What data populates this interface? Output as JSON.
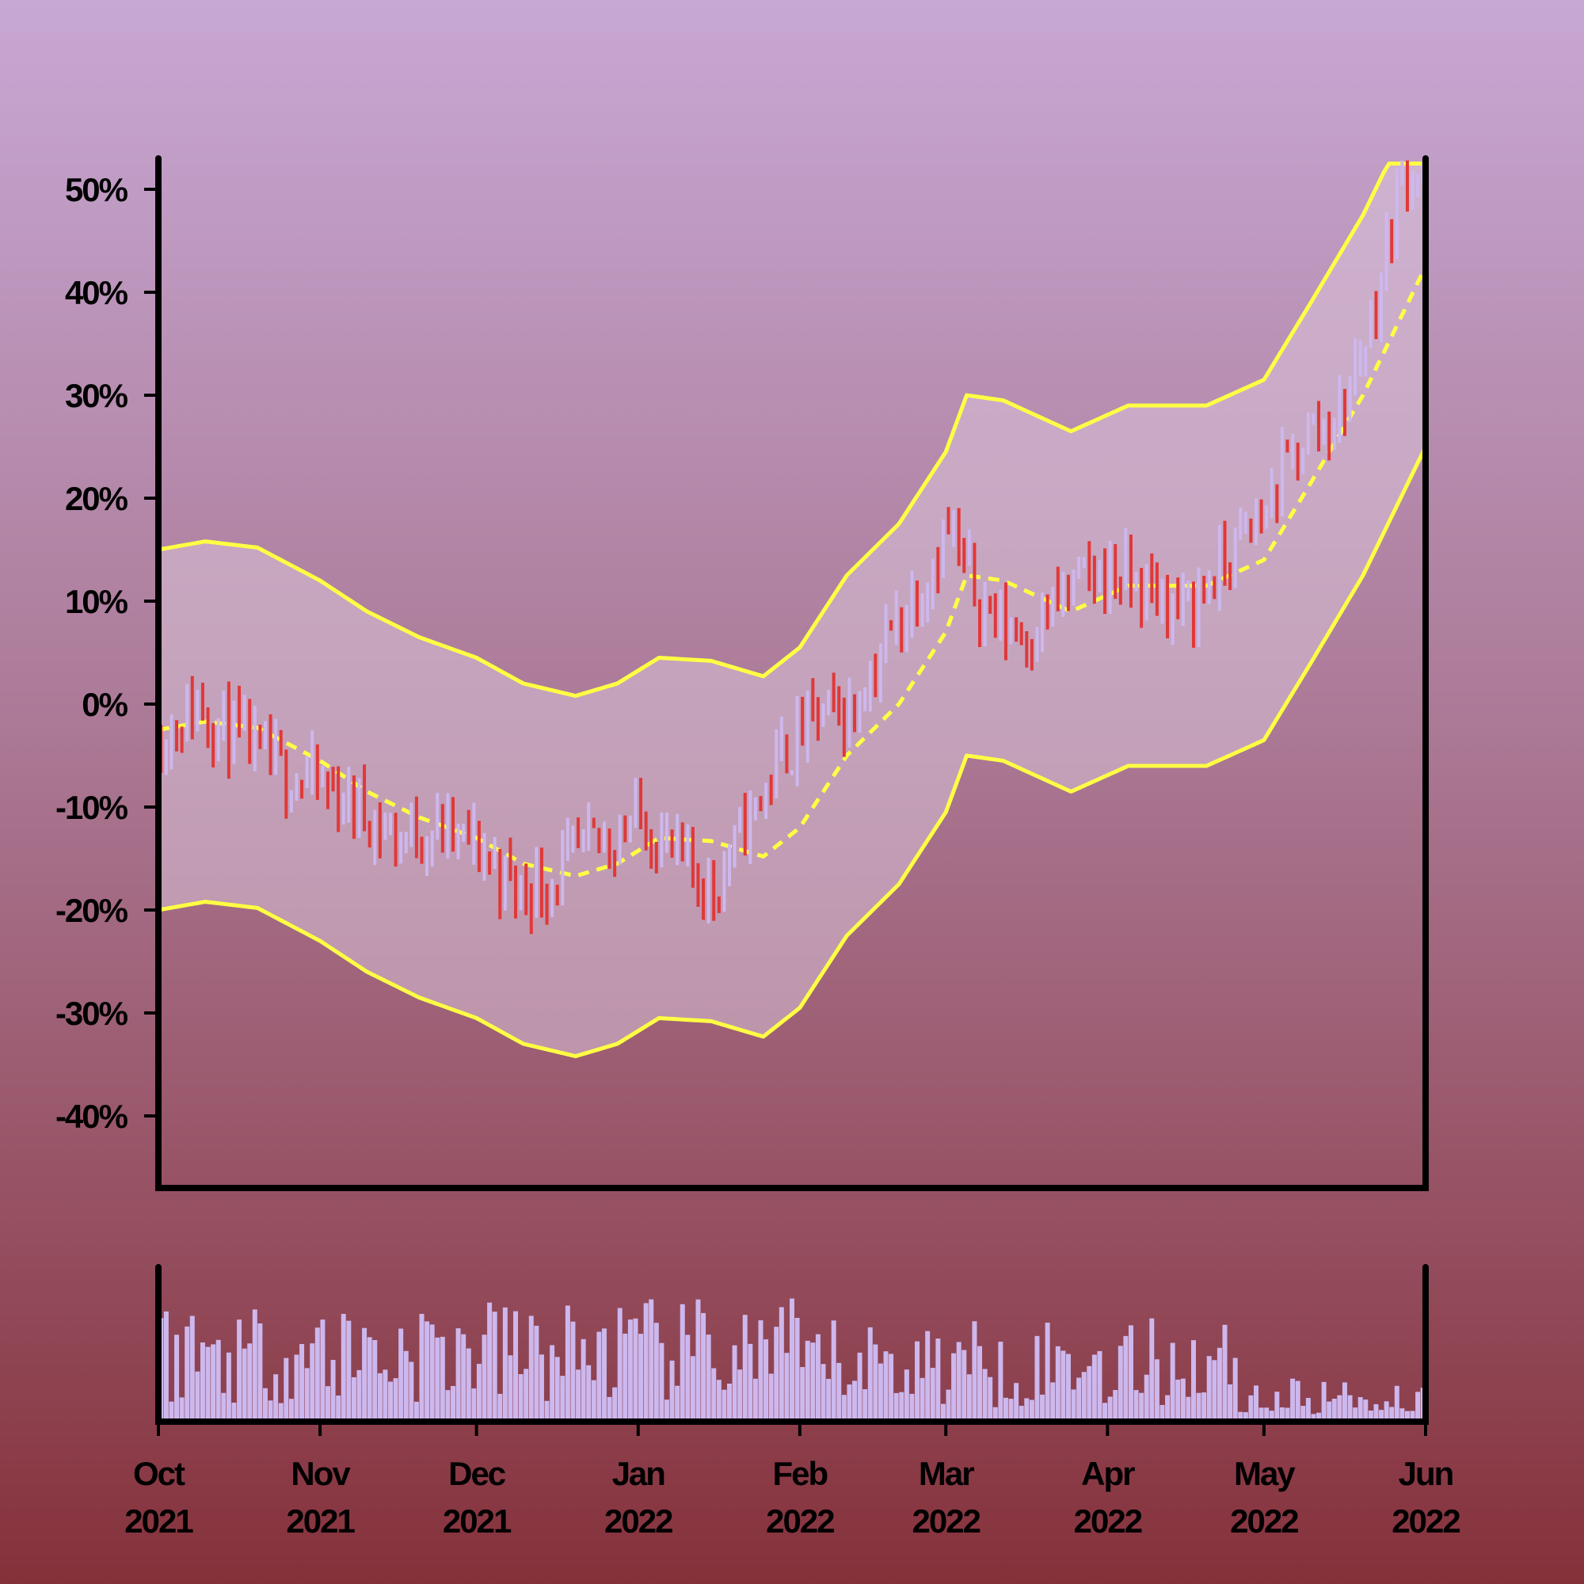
{
  "chart_data": {
    "type": "ohlc-with-bands-and-volume",
    "colors": {
      "up": "#cdb8ee",
      "down": "#e03838",
      "band": "#ffff44",
      "band_fill": "#d8c3d8",
      "volume": "#cdb8ee",
      "axis": "#000000"
    },
    "x_range": [
      "2021-10-01",
      "2022-06-01"
    ],
    "x_ticks": [
      {
        "date": "2021-10-01",
        "month": "Oct",
        "year": "2021"
      },
      {
        "date": "2021-11-01",
        "month": "Nov",
        "year": "2021"
      },
      {
        "date": "2021-12-01",
        "month": "Dec",
        "year": "2021"
      },
      {
        "date": "2022-01-01",
        "month": "Jan",
        "year": "2022"
      },
      {
        "date": "2022-02-01",
        "month": "Feb",
        "year": "2022"
      },
      {
        "date": "2022-03-01",
        "month": "Mar",
        "year": "2022"
      },
      {
        "date": "2022-04-01",
        "month": "Apr",
        "year": "2022"
      },
      {
        "date": "2022-05-01",
        "month": "May",
        "year": "2022"
      },
      {
        "date": "2022-06-01",
        "month": "Jun",
        "year": "2022"
      }
    ],
    "y_range": [
      -47,
      53
    ],
    "y_ticks": [
      {
        "value": 50,
        "label": "50%"
      },
      {
        "value": 40,
        "label": "40%"
      },
      {
        "value": 30,
        "label": "30%"
      },
      {
        "value": 20,
        "label": "20%"
      },
      {
        "value": 10,
        "label": "10%"
      },
      {
        "value": 0,
        "label": "0%"
      },
      {
        "value": -10,
        "label": "-10%"
      },
      {
        "value": -20,
        "label": "-20%"
      },
      {
        "value": -30,
        "label": "-30%"
      },
      {
        "value": -40,
        "label": "-40%"
      }
    ],
    "price_path": [
      [
        "2021-10-01",
        -3
      ],
      [
        "2021-10-08",
        0
      ],
      [
        "2021-10-15",
        -3
      ],
      [
        "2021-10-22",
        -6
      ],
      [
        "2021-11-01",
        -8
      ],
      [
        "2021-11-08",
        -10
      ],
      [
        "2021-11-15",
        -13
      ],
      [
        "2021-11-22",
        -12
      ],
      [
        "2021-12-01",
        -14
      ],
      [
        "2021-12-08",
        -18
      ],
      [
        "2021-12-15",
        -17
      ],
      [
        "2021-12-22",
        -14
      ],
      [
        "2022-01-01",
        -11
      ],
      [
        "2022-01-08",
        -15
      ],
      [
        "2022-01-15",
        -18
      ],
      [
        "2022-01-22",
        -11
      ],
      [
        "2022-01-28",
        -5
      ],
      [
        "2022-02-04",
        -1
      ],
      [
        "2022-02-10",
        -1
      ],
      [
        "2022-02-17",
        6
      ],
      [
        "2022-02-24",
        12
      ],
      [
        "2022-03-01",
        17
      ],
      [
        "2022-03-04",
        13
      ],
      [
        "2022-03-10",
        8
      ],
      [
        "2022-03-17",
        7
      ],
      [
        "2022-03-24",
        11
      ],
      [
        "2022-04-01",
        13
      ],
      [
        "2022-04-08",
        11
      ],
      [
        "2022-04-15",
        9
      ],
      [
        "2022-04-22",
        13
      ],
      [
        "2022-05-01",
        19
      ],
      [
        "2022-05-08",
        26
      ],
      [
        "2022-05-15",
        28
      ],
      [
        "2022-05-22",
        39
      ],
      [
        "2022-05-27",
        52
      ],
      [
        "2022-06-01",
        52
      ]
    ],
    "mid_band": [
      [
        "2021-10-01",
        -2.5
      ],
      [
        "2021-10-10",
        -1.7
      ],
      [
        "2021-10-20",
        -2.3
      ],
      [
        "2021-11-01",
        -5.5
      ],
      [
        "2021-11-10",
        -8.5
      ],
      [
        "2021-11-20",
        -11
      ],
      [
        "2021-12-01",
        -13
      ],
      [
        "2021-12-10",
        -15.5
      ],
      [
        "2021-12-20",
        -16.7
      ],
      [
        "2021-12-28",
        -15.5
      ],
      [
        "2022-01-05",
        -13
      ],
      [
        "2022-01-15",
        -13.3
      ],
      [
        "2022-01-25",
        -14.8
      ],
      [
        "2022-02-01",
        -12
      ],
      [
        "2022-02-10",
        -5
      ],
      [
        "2022-02-20",
        0
      ],
      [
        "2022-03-01",
        7
      ],
      [
        "2022-03-05",
        12.5
      ],
      [
        "2022-03-12",
        12
      ],
      [
        "2022-03-25",
        9
      ],
      [
        "2022-04-05",
        11.5
      ],
      [
        "2022-04-20",
        11.5
      ],
      [
        "2022-05-01",
        14
      ],
      [
        "2022-05-10",
        21.5
      ],
      [
        "2022-05-20",
        30
      ],
      [
        "2022-06-01",
        42.5
      ]
    ],
    "band_half_width": 17.5,
    "upper_band_cap": 52.5,
    "volume_seed": 11
  }
}
